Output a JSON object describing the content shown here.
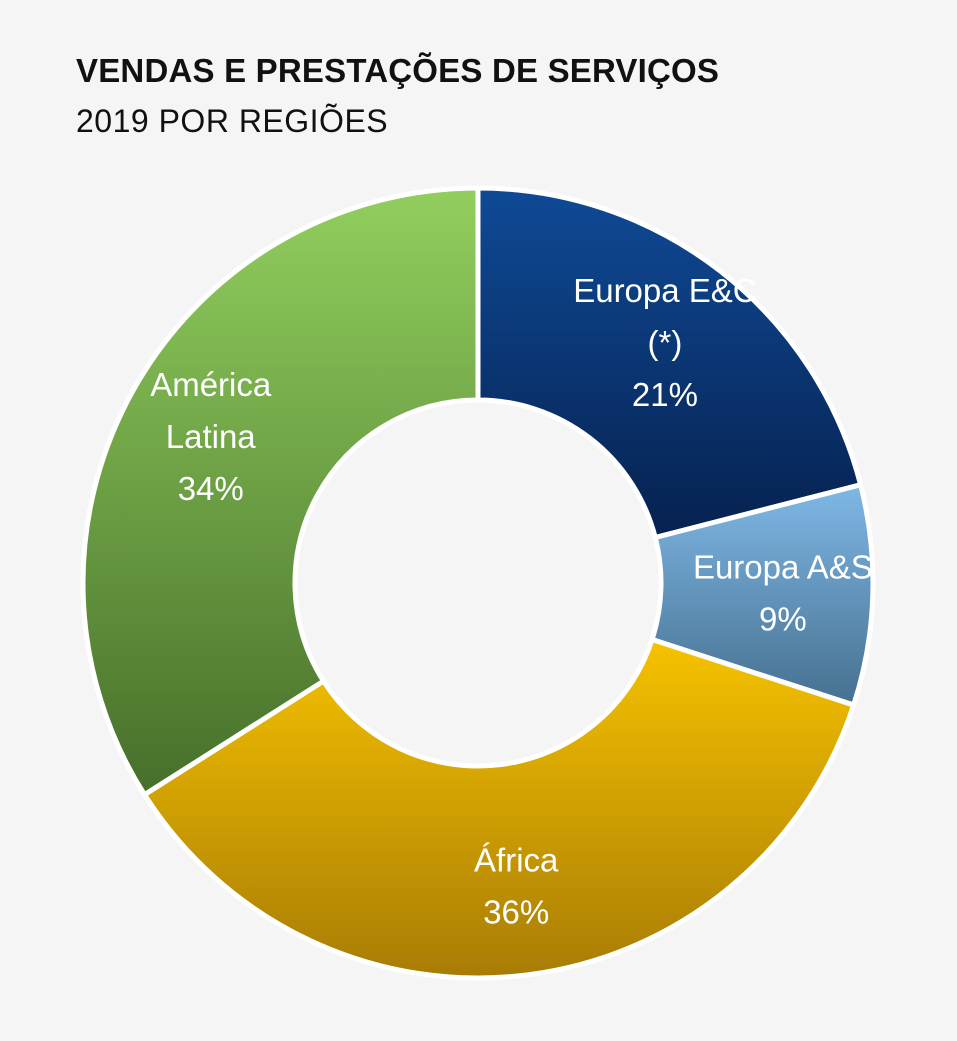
{
  "chart_data": {
    "type": "pie",
    "title": "VENDAS E PRESTAÇÕES DE SERVIÇOS",
    "subtitle": "2019 POR REGIÕES",
    "donut": true,
    "slices": [
      {
        "label_lines": [
          "Europa E&C",
          "(*)"
        ],
        "value": 21,
        "value_label": "21%",
        "color_light": "#0f4a96",
        "color_dark": "#06214f"
      },
      {
        "label_lines": [
          "Europa A&S"
        ],
        "value": 9,
        "value_label": "9%",
        "color_light": "#7fb8e6",
        "color_dark": "#46708f"
      },
      {
        "label_lines": [
          "África"
        ],
        "value": 36,
        "value_label": "36%",
        "color_light": "#f6c200",
        "color_dark": "#a87c05"
      },
      {
        "label_lines": [
          "América",
          "Latina"
        ],
        "value": 34,
        "value_label": "34%",
        "color_light": "#92cf5e",
        "color_dark": "#466f2a"
      }
    ]
  }
}
